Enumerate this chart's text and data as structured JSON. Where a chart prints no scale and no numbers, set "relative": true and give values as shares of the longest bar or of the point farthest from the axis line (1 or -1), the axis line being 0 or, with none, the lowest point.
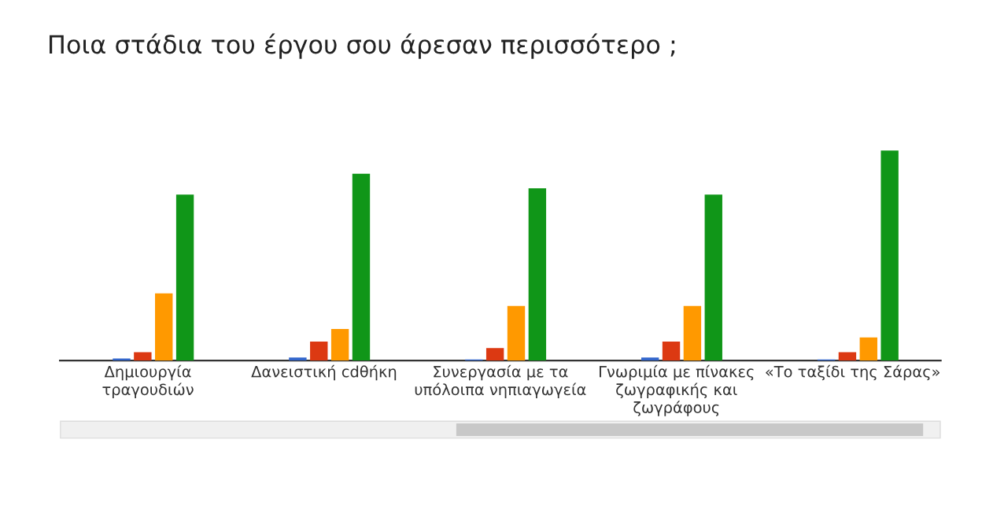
{
  "chart_data": {
    "type": "bar",
    "title": "Ποια στάδια του έργου σου άρεσαν περισσότερο ;",
    "relative": true,
    "legend": false,
    "categories": [
      "Δημιουργία\nτραγουδιών",
      "Δανειστική cdθήκη",
      "Συνεργασία με τα\nυπόλοιπα νηπιαγωγεία",
      "Γνωριμία με πίνακες\nζωγραφικής και\nζωγράφους",
      "«Το ταξίδι της Σάρας»"
    ],
    "series": [
      {
        "color": "#3366cc",
        "values": [
          0.01,
          0.015,
          0.005,
          0.015,
          0.005
        ]
      },
      {
        "color": "#dc3912",
        "values": [
          0.04,
          0.09,
          0.06,
          0.09,
          0.04
        ]
      },
      {
        "color": "#ff9900",
        "values": [
          0.32,
          0.15,
          0.26,
          0.26,
          0.11
        ]
      },
      {
        "color": "#109618",
        "values": [
          0.79,
          0.89,
          0.82,
          0.79,
          1
        ]
      }
    ]
  }
}
